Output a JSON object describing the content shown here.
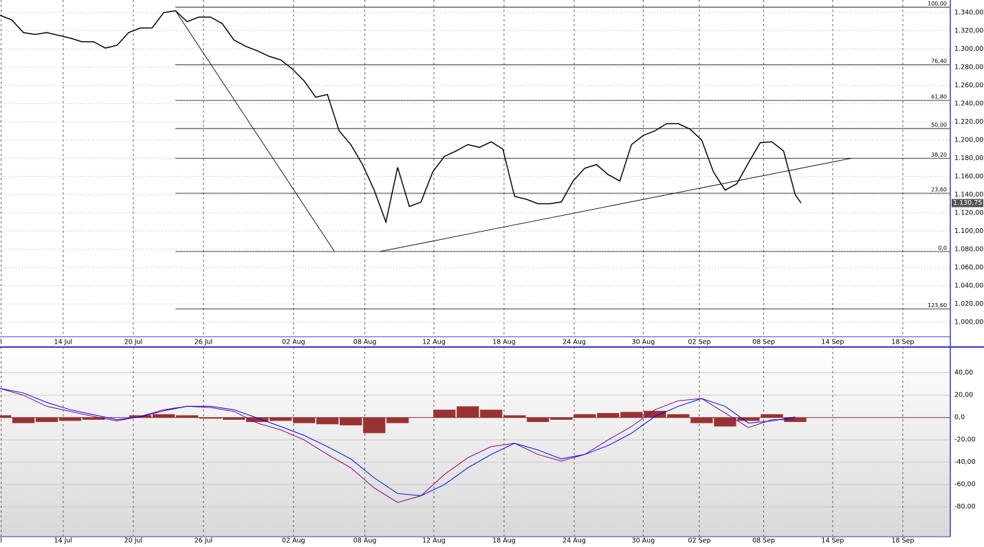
{
  "chart_data": [
    {
      "type": "line",
      "xlim": [
        0,
        81.2
      ],
      "ylim": [
        984,
        1350
      ],
      "xticks": [
        {
          "value": 0.1,
          "label": "l"
        },
        {
          "value": 5.4,
          "label": "14 Jul"
        },
        {
          "value": 11.4,
          "label": "20 Jul"
        },
        {
          "value": 17.4,
          "label": "26 Jul"
        },
        {
          "value": 25.1,
          "label": "02 Aug"
        },
        {
          "value": 31.2,
          "label": "08 Aug"
        },
        {
          "value": 37.1,
          "label": "12 Aug"
        },
        {
          "value": 43.1,
          "label": "18 Aug"
        },
        {
          "value": 49.1,
          "label": "24 Aug"
        },
        {
          "value": 55,
          "label": "30 Aug"
        },
        {
          "value": 59.8,
          "label": "02 Sep"
        },
        {
          "value": 65.3,
          "label": "08 Sep"
        },
        {
          "value": 71.2,
          "label": "14 Sep"
        },
        {
          "value": 77.2,
          "label": "18 Sep"
        }
      ],
      "yticks": [
        {
          "value": 1000,
          "label": "1.000,00"
        },
        {
          "value": 1020,
          "label": "1.020,00"
        },
        {
          "value": 1040,
          "label": "1.040,00"
        },
        {
          "value": 1060,
          "label": "1.060,00"
        },
        {
          "value": 1080,
          "label": "1.080,00"
        },
        {
          "value": 1100,
          "label": "1.100,00"
        },
        {
          "value": 1120,
          "label": "1.120,00"
        },
        {
          "value": 1140,
          "label": "1.140,00"
        },
        {
          "value": 1160,
          "label": "1.160,00"
        },
        {
          "value": 1180,
          "label": "1.180,00"
        },
        {
          "value": 1200,
          "label": "1.200,00"
        },
        {
          "value": 1220,
          "label": "1.220,00"
        },
        {
          "value": 1240,
          "label": "1.240,00"
        },
        {
          "value": 1260,
          "label": "1.260,00"
        },
        {
          "value": 1280,
          "label": "1.280,00"
        },
        {
          "value": 1300,
          "label": "1.300,00"
        },
        {
          "value": 1320,
          "label": "1.320,00"
        },
        {
          "value": 1340,
          "label": "1.340,00"
        }
      ],
      "grid": true,
      "series": [
        {
          "color": "#000000",
          "x": [
            0,
            1,
            2,
            3,
            4,
            5,
            6,
            7,
            8,
            9,
            10,
            11,
            12,
            13,
            14,
            15,
            16,
            17,
            18,
            19,
            20,
            21,
            22,
            23,
            24,
            25,
            26,
            27,
            28,
            29,
            30,
            31,
            32,
            33,
            34,
            35,
            36,
            37,
            38,
            39,
            40,
            41,
            42,
            43,
            44,
            45,
            46,
            47,
            48,
            49,
            50,
            51,
            52,
            53,
            54,
            55,
            56,
            57,
            58,
            59,
            60,
            61,
            62,
            63,
            64,
            65,
            66,
            67,
            68,
            68.5
          ],
          "values": [
            1337,
            1332,
            1318,
            1316,
            1318,
            1315,
            1312,
            1308,
            1308,
            1301,
            1304,
            1318,
            1323,
            1323,
            1340,
            1342,
            1330,
            1335,
            1335,
            1328,
            1310,
            1303,
            1298,
            1292,
            1288,
            1278,
            1265,
            1247,
            1250,
            1210,
            1195,
            1173,
            1145,
            1110,
            1170,
            1127,
            1132,
            1165,
            1182,
            1188,
            1195,
            1192,
            1198,
            1190,
            1138,
            1135,
            1130,
            1130,
            1132,
            1155,
            1169,
            1173,
            1162,
            1155,
            1195,
            1205,
            1210,
            1218,
            1218,
            1212,
            1200,
            1165,
            1145,
            1152,
            1175,
            1197,
            1198,
            1188,
            1140,
            1130.75
          ],
          "value_labels": [
            null,
            null,
            null,
            null,
            null,
            null,
            null,
            null,
            null,
            null,
            null,
            null,
            null,
            null,
            null,
            null,
            null,
            null,
            null,
            null,
            null,
            null,
            null,
            null,
            null,
            null,
            null,
            null,
            null,
            null,
            null,
            null,
            null,
            null,
            null,
            null,
            null,
            null,
            null,
            null,
            null,
            null,
            null,
            null,
            null,
            null,
            null,
            null,
            null,
            null,
            null,
            null,
            null,
            null,
            null,
            null,
            null,
            null,
            null,
            null,
            null,
            null,
            null,
            null,
            null,
            null,
            null,
            null,
            null,
            "1.130,75"
          ]
        }
      ],
      "levels": [
        {
          "value": 1346,
          "label": "100,00"
        },
        {
          "value": 1282.7,
          "label": "76,40"
        },
        {
          "value": 1243.5,
          "label": "61,80"
        },
        {
          "value": 1212.6,
          "label": "50,00"
        },
        {
          "value": 1180,
          "label": "38,20"
        },
        {
          "value": 1141.6,
          "label": "23,60"
        },
        {
          "value": 1077.6,
          "label": "0,0"
        },
        {
          "value": 1014.4,
          "label": "123,60"
        }
      ],
      "trendlines": [
        {
          "x": [
            15,
            28.6
          ],
          "y": [
            1342,
            1077.6
          ]
        },
        {
          "x": [
            32.5,
            72.8
          ],
          "y": [
            1077.6,
            1180
          ]
        }
      ]
    },
    {
      "type": "line",
      "xlim": [
        0,
        81.2
      ],
      "ylim": [
        -106,
        60
      ],
      "xticks": [
        {
          "value": 0.1,
          "label": "l"
        },
        {
          "value": 5.4,
          "label": "14 Jul"
        },
        {
          "value": 11.4,
          "label": "20 Jul"
        },
        {
          "value": 17.4,
          "label": "26 Jul"
        },
        {
          "value": 25.1,
          "label": "02 Aug"
        },
        {
          "value": 31.2,
          "label": "08 Aug"
        },
        {
          "value": 37.1,
          "label": "12 Aug"
        },
        {
          "value": 43.1,
          "label": "18 Aug"
        },
        {
          "value": 49.1,
          "label": "24 Aug"
        },
        {
          "value": 55,
          "label": "30 Aug"
        },
        {
          "value": 59.8,
          "label": "02 Sep"
        },
        {
          "value": 65.3,
          "label": "08 Sep"
        },
        {
          "value": 71.2,
          "label": "14 Sep"
        },
        {
          "value": 77.2,
          "label": "18 Sep"
        }
      ],
      "yticks": [
        {
          "value": -80,
          "label": "-80,00"
        },
        {
          "value": -60,
          "label": "-60,00"
        },
        {
          "value": -40,
          "label": "-40,00"
        },
        {
          "value": -20,
          "label": "-20,00"
        },
        {
          "value": 0,
          "label": "0,0"
        },
        {
          "value": 20,
          "label": "20,00"
        },
        {
          "value": 40,
          "label": "40,00"
        }
      ],
      "grid": true,
      "series": [
        {
          "color": "#993333",
          "style": "bar",
          "x": [
            0,
            2,
            4,
            6,
            8,
            10,
            12,
            14,
            16,
            18,
            20,
            22,
            24,
            26,
            28,
            30,
            32,
            34,
            36,
            38,
            40,
            42,
            44,
            46,
            48,
            50,
            52,
            54,
            56,
            58,
            60,
            62,
            64,
            66,
            68
          ],
          "values": [
            2,
            -5,
            -4,
            -3,
            -2,
            0,
            2,
            3,
            2,
            -1,
            -2,
            -4,
            -3,
            -5,
            -6,
            -7,
            -14,
            -5,
            0,
            7,
            10,
            7,
            2,
            -4,
            -2,
            3,
            4,
            5,
            6,
            3,
            -5,
            -8,
            -3,
            3,
            -4
          ]
        },
        {
          "color": "#800080",
          "x": [
            0,
            2,
            4,
            6,
            8,
            10,
            12,
            14,
            16,
            18,
            20,
            22,
            24,
            26,
            28,
            30,
            32,
            34,
            36,
            38,
            40,
            42,
            44,
            46,
            48,
            50,
            52,
            54,
            56,
            58,
            60,
            62,
            64,
            66,
            68
          ],
          "values": [
            26,
            20,
            10,
            5.5,
            1,
            -3,
            1,
            7,
            10,
            9,
            5.5,
            -5,
            -11,
            -20,
            -33,
            -45,
            -63,
            -76,
            -70,
            -51,
            -36,
            -26,
            -23,
            -33,
            -39,
            -33,
            -20,
            -8,
            7,
            15,
            17,
            4,
            -9,
            -2,
            -2
          ]
        },
        {
          "color": "#0000ee",
          "x": [
            0,
            2,
            4,
            6,
            8,
            10,
            12,
            14,
            16,
            18,
            20,
            22,
            24,
            26,
            28,
            30,
            32,
            34,
            36,
            38,
            40,
            42,
            44,
            46,
            48,
            50,
            52,
            54,
            56,
            58,
            60,
            62,
            64,
            66,
            68
          ],
          "values": [
            26,
            22,
            13.5,
            7,
            2.5,
            -2,
            0.5,
            6,
            10,
            10,
            7,
            -0.5,
            -8,
            -16,
            -26,
            -37,
            -54,
            -68,
            -70,
            -60,
            -45,
            -33,
            -23,
            -29,
            -37,
            -33,
            -25,
            -14,
            1,
            10,
            17,
            10,
            -5,
            -3,
            0.5
          ]
        }
      ]
    }
  ]
}
